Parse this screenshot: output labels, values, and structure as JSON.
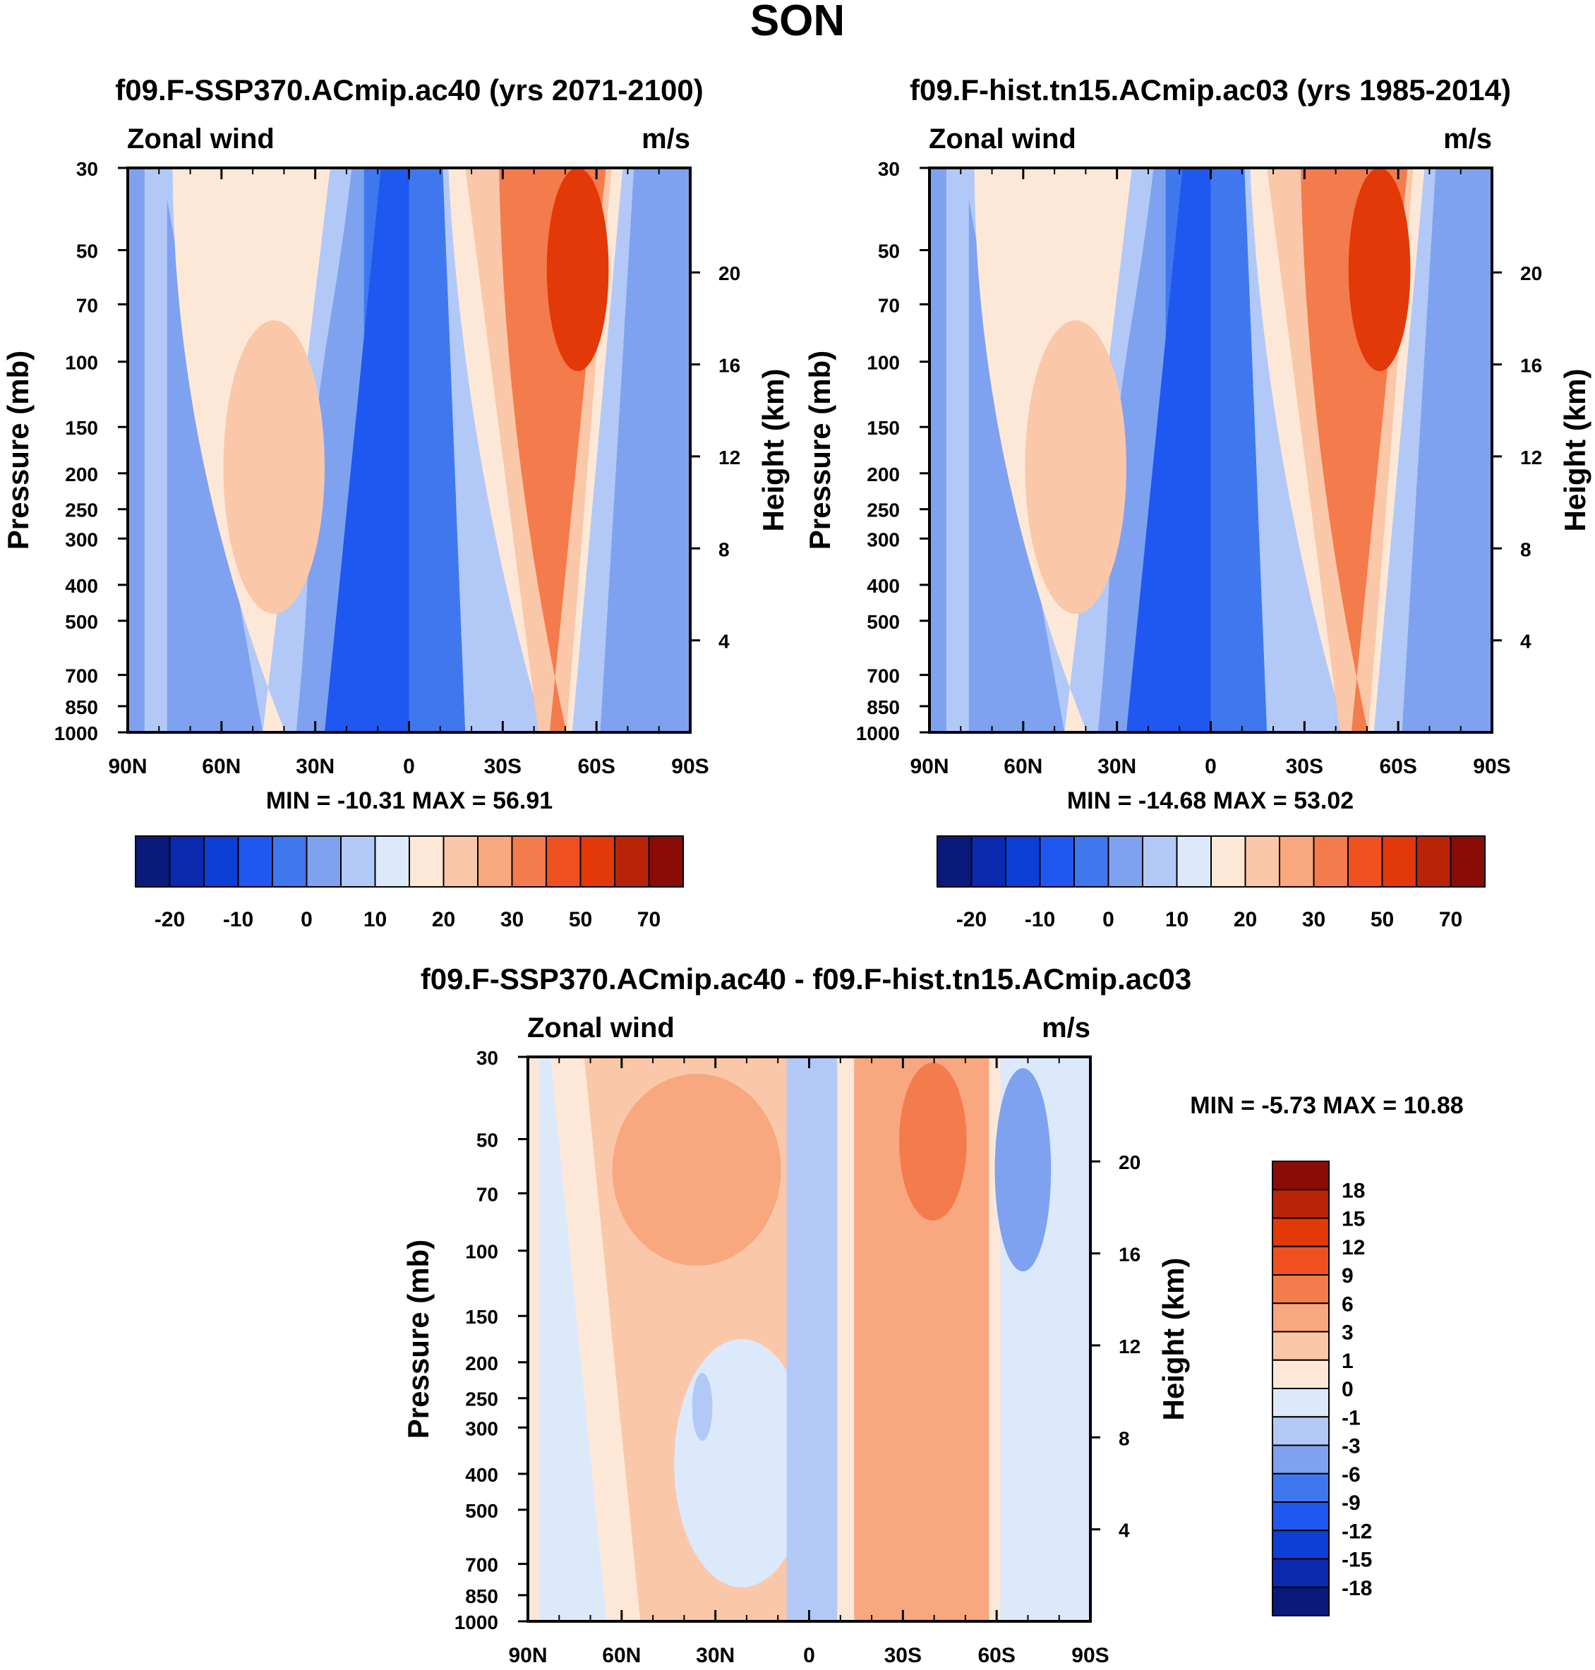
{
  "page": {
    "title": "SON",
    "colors": {
      "abs_palette": [
        "#0a1a7a",
        "#0b2ab0",
        "#0c3fd6",
        "#1e58f0",
        "#3f78ee",
        "#7ea2f0",
        "#b2c9f8",
        "#dce9fb",
        "#fde8d8",
        "#fbc7a9",
        "#f8a77f",
        "#f47b4b",
        "#f0501f",
        "#e33808",
        "#b92407",
        "#8a0c07"
      ],
      "diff_palette": [
        "#0a1a7a",
        "#0b2ab0",
        "#0c3fd6",
        "#1e58f0",
        "#3f78ee",
        "#7ea2f0",
        "#b2c9f8",
        "#dce9fb",
        "#fde8d8",
        "#fbc7a9",
        "#f8a77f",
        "#f47b4b",
        "#f0501f",
        "#e33808",
        "#b92407",
        "#8a0c07"
      ],
      "abs_fill_by_zone": [
        "#7ea2f0",
        "#b2c9f8",
        "#fde8d8",
        "#fbc7a9",
        "#b2c9f8",
        "#3f78ee",
        "#1e58f0",
        "#fbc7a9",
        "#f47b4b",
        "#e33808",
        "#7ea2f0"
      ],
      "diff_fill_by_zone": [
        "#fde8d8",
        "#fbc7a9",
        "#f8a77f",
        "#fde8d8",
        "#b2c9f8",
        "#f8a77f",
        "#f47b4b",
        "#fde8d8",
        "#7ea2f0",
        "#dce9fb"
      ]
    }
  },
  "chart_data": [
    {
      "type": "heatmap",
      "id": "panel1",
      "title": "f09.F-SSP370.ACmip.ac40 (yrs 2071-2100)",
      "left_string": "Zonal wind",
      "right_string": "m/s",
      "ylabel": "Pressure (mb)",
      "ylabel_right": "Height (km)",
      "xticks": [
        "90N",
        "60N",
        "30N",
        "0",
        "30S",
        "60S",
        "90S"
      ],
      "yticks": [
        "30",
        "50",
        "70",
        "100",
        "150",
        "200",
        "250",
        "300",
        "400",
        "500",
        "700",
        "850",
        "1000"
      ],
      "yticks_right": [
        "4",
        "8",
        "12",
        "16",
        "20"
      ],
      "minmax_label": "MIN = -10.31   MAX =  56.91",
      "min": -10.31,
      "max": 56.91,
      "xlim": [
        90,
        -90
      ],
      "ylim_mb": [
        1000,
        30
      ],
      "colorbar": {
        "orientation": "horizontal",
        "labels": [
          "-20",
          "-10",
          "0",
          "10",
          "20",
          "30",
          "50",
          "70"
        ]
      }
    },
    {
      "type": "heatmap",
      "id": "panel2",
      "title": "f09.F-hist.tn15.ACmip.ac03 (yrs 1985-2014)",
      "left_string": "Zonal wind",
      "right_string": "m/s",
      "ylabel": "Pressure (mb)",
      "ylabel_right": "Height (km)",
      "xticks": [
        "90N",
        "60N",
        "30N",
        "0",
        "30S",
        "60S",
        "90S"
      ],
      "yticks": [
        "30",
        "50",
        "70",
        "100",
        "150",
        "200",
        "250",
        "300",
        "400",
        "500",
        "700",
        "850",
        "1000"
      ],
      "yticks_right": [
        "4",
        "8",
        "12",
        "16",
        "20"
      ],
      "minmax_label": "MIN = -14.68   MAX =  53.02",
      "min": -14.68,
      "max": 53.02,
      "xlim": [
        90,
        -90
      ],
      "ylim_mb": [
        1000,
        30
      ],
      "colorbar": {
        "orientation": "horizontal",
        "labels": [
          "-20",
          "-10",
          "0",
          "10",
          "20",
          "30",
          "50",
          "70"
        ]
      }
    },
    {
      "type": "heatmap",
      "id": "panel3",
      "title": "f09.F-SSP370.ACmip.ac40 - f09.F-hist.tn15.ACmip.ac03",
      "left_string": "Zonal wind",
      "right_string": "m/s",
      "ylabel": "Pressure (mb)",
      "ylabel_right": "Height (km)",
      "xticks": [
        "90N",
        "60N",
        "30N",
        "0",
        "30S",
        "60S",
        "90S"
      ],
      "yticks": [
        "30",
        "50",
        "70",
        "100",
        "150",
        "200",
        "250",
        "300",
        "400",
        "500",
        "700",
        "850",
        "1000"
      ],
      "yticks_right": [
        "4",
        "8",
        "12",
        "16",
        "20"
      ],
      "minmax_label": "MIN =  -5.73   MAX =  10.88",
      "min": -5.73,
      "max": 10.88,
      "xlim": [
        90,
        -90
      ],
      "ylim_mb": [
        1000,
        30
      ],
      "colorbar": {
        "orientation": "vertical",
        "labels": [
          "18",
          "15",
          "12",
          "9",
          "6",
          "3",
          "1",
          "0",
          "-1",
          "-3",
          "-6",
          "-9",
          "-12",
          "-15",
          "-18"
        ]
      }
    }
  ]
}
